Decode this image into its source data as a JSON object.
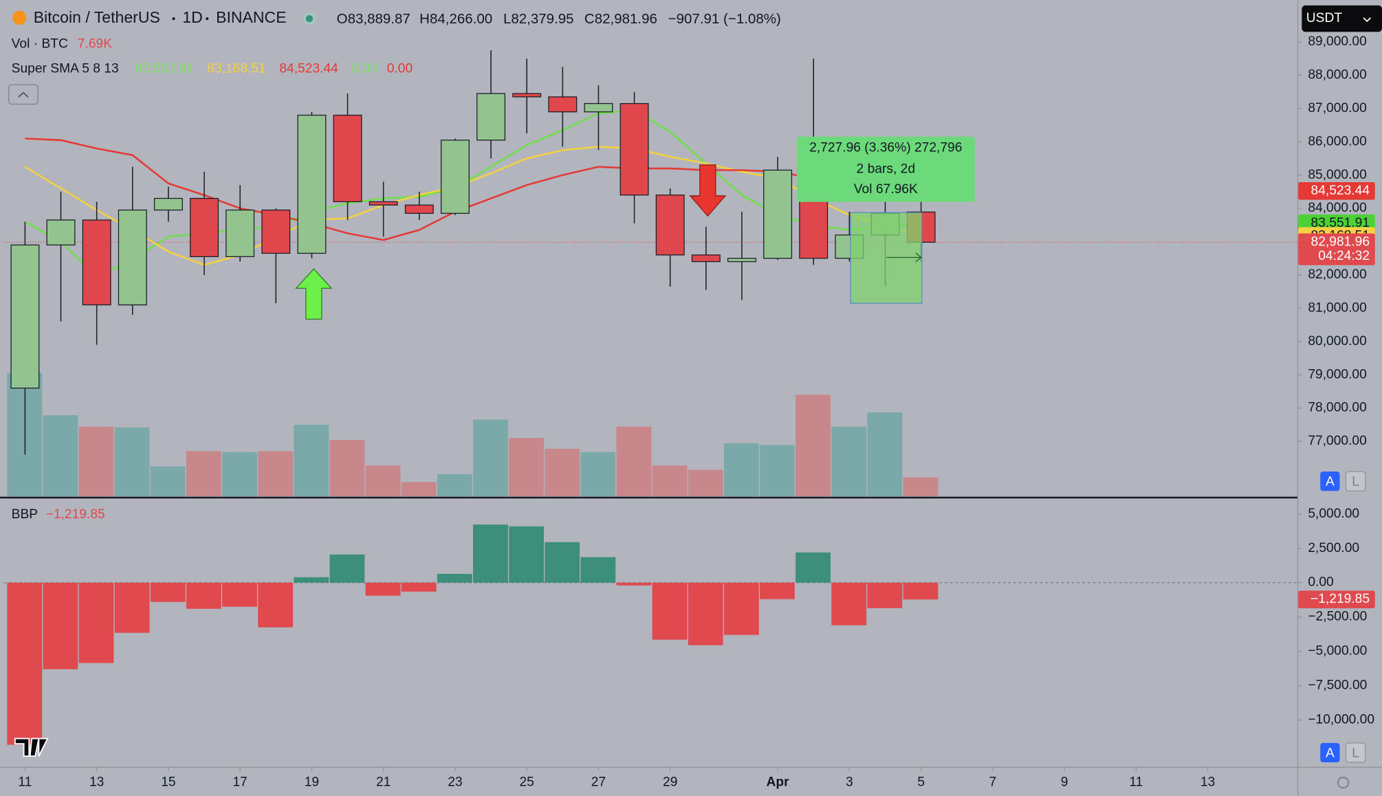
{
  "header": {
    "symbol": "Bitcoin / TetherUS",
    "interval": "1D",
    "exchange": "BINANCE",
    "ohlc": [
      "O83,889.87",
      "H84,266.00",
      "L82,379.95",
      "C82,981.96",
      "−907.91 (−1.08%)"
    ],
    "currency": "USDT"
  },
  "controls": {
    "auto": "A",
    "log": "L"
  },
  "measure": {
    "lines": [
      "2,727.96 (3.36%) 272,796",
      "2 bars, 2d",
      "Vol 67.96K"
    ]
  },
  "chart_data": [
    {
      "type": "candlestick",
      "xlim": [
        -0.6,
        35.5
      ],
      "xticks": [
        {
          "value": 0,
          "label": "11"
        },
        {
          "value": 2,
          "label": "13"
        },
        {
          "value": 4,
          "label": "15"
        },
        {
          "value": 6,
          "label": "17"
        },
        {
          "value": 8,
          "label": "19"
        },
        {
          "value": 10,
          "label": "21"
        },
        {
          "value": 12,
          "label": "23"
        },
        {
          "value": 14,
          "label": "25"
        },
        {
          "value": 16,
          "label": "27"
        },
        {
          "value": 18,
          "label": "29"
        },
        {
          "value": 21,
          "label": "Apr"
        },
        {
          "value": 23,
          "label": "3"
        },
        {
          "value": 25,
          "label": "5"
        },
        {
          "value": 27,
          "label": "7"
        },
        {
          "value": 29,
          "label": "9"
        },
        {
          "value": 31,
          "label": "11"
        },
        {
          "value": 33,
          "label": "13"
        }
      ],
      "ylim": [
        75350,
        90150
      ],
      "yticks": [
        {
          "value": 89000,
          "label": "89,000.00"
        },
        {
          "value": 88000,
          "label": "88,000.00"
        },
        {
          "value": 87000,
          "label": "87,000.00"
        },
        {
          "value": 86000,
          "label": "86,000.00"
        },
        {
          "value": 85000,
          "label": "85,000.00"
        },
        {
          "value": 84000,
          "label": "84,000.00"
        },
        {
          "value": 83000,
          "label": "83,000.00"
        },
        {
          "value": 82000,
          "label": "82,000.00"
        },
        {
          "value": 81000,
          "label": "81,000.00"
        },
        {
          "value": 80000,
          "label": "80,000.00"
        },
        {
          "value": 79000,
          "label": "79,000.00"
        },
        {
          "value": 78000,
          "label": "78,000.00"
        },
        {
          "value": 77000,
          "label": "77,000.00"
        }
      ],
      "open": [
        78600,
        82900,
        83650,
        81100,
        83950,
        84300,
        82550,
        83950,
        82650,
        86800,
        84200,
        84100,
        83850,
        86050,
        87450,
        87350,
        86900,
        87150,
        84400,
        82600,
        82400,
        82500,
        85150,
        82500,
        83200,
        83889.87
      ],
      "high": [
        83600,
        84500,
        84200,
        85250,
        84650,
        85100,
        84700,
        84000,
        86900,
        87450,
        84800,
        84500,
        86100,
        88750,
        88500,
        88250,
        87700,
        87500,
        84600,
        83450,
        83900,
        85550,
        88500,
        83900,
        84600,
        84266
      ],
      "low": [
        76600,
        80600,
        79900,
        80800,
        83600,
        82000,
        82400,
        81150,
        82500,
        83650,
        83150,
        83650,
        83800,
        85500,
        86250,
        85850,
        85750,
        83550,
        81650,
        81550,
        81250,
        82450,
        82300,
        82400,
        81650,
        82379.95
      ],
      "close": [
        82900,
        83650,
        81100,
        83950,
        84300,
        82550,
        83950,
        82650,
        86800,
        84200,
        84100,
        83850,
        86050,
        87450,
        87350,
        86900,
        87150,
        84400,
        82600,
        82400,
        82500,
        85150,
        82500,
        83200,
        83850,
        82981.96
      ],
      "up_color": "#93c48f",
      "down_color": "#e0474c",
      "volume": {
        "name": "Vol · BTC",
        "value_label": "7.69K",
        "values": [
          50.4,
          33.1,
          28.4,
          28.1,
          12.2,
          18.4,
          18.0,
          18.4,
          29.2,
          23.0,
          12.6,
          5.8,
          9.0,
          31.3,
          23.8,
          19.4,
          18.0,
          28.4,
          12.6,
          10.8,
          21.6,
          20.9,
          41.4,
          28.4,
          34.2,
          7.69
        ],
        "up_color": "#7ba8a9",
        "down_color": "#c8878a"
      },
      "indicator": {
        "name": "Super SMA 5 8 13",
        "series": [
          {
            "color": "#6fe04a",
            "legend_color": "#7ddf64",
            "last_label": "83,551.91",
            "values": [
              83600,
              83000,
              81950,
              82450,
              83150,
              83250,
              83350,
              83450,
              83900,
              84150,
              84300,
              84350,
              84600,
              85250,
              85900,
              86350,
              86850,
              86950,
              86300,
              85350,
              84400,
              83800,
              83500,
              83350,
              83450,
              83551.91
            ]
          },
          {
            "color": "#f5d142",
            "legend_color": "#f5d142",
            "last_label": "83,168.51",
            "values": [
              85250,
              84600,
              83950,
              83350,
              82700,
              82300,
              82600,
              83150,
              83650,
              83700,
              84100,
              84400,
              84650,
              85050,
              85500,
              85750,
              85850,
              85800,
              85550,
              85350,
              85100,
              84900,
              84300,
              83800,
              83500,
              83168.51
            ]
          },
          {
            "color": "#e53935",
            "legend_color": "#e53935",
            "last_label": "84,523.44",
            "values": [
              86100,
              86050,
              85800,
              85600,
              84750,
              84400,
              84000,
              83800,
              83550,
              83250,
              83050,
              83350,
              83900,
              84300,
              84700,
              85000,
              85250,
              85200,
              85200,
              85150,
              85150,
              85100,
              84900,
              84750,
              84650,
              84523.44
            ]
          }
        ],
        "extra_labels": [
          {
            "text": "0.00",
            "color": "#7ddf64"
          },
          {
            "text": "0.00",
            "color": "#e53935"
          }
        ]
      },
      "price_badges": [
        {
          "value": 84523.44,
          "label": "84,523.44",
          "color": "#e53935",
          "text_color": "#ffffff"
        },
        {
          "value": 83551.91,
          "label": "83,551.91",
          "color": "#4cd137",
          "text_color": "#131722"
        },
        {
          "value": 83168.51,
          "label": "83,168.51",
          "color": "#f7d046",
          "text_color": "#131722"
        }
      ],
      "last_price": {
        "value": 82981.96,
        "label": "82,981.96",
        "countdown": "04:24:32",
        "color": "#e04a4e"
      }
    },
    {
      "type": "bar",
      "title": "BBP",
      "value_label": "−1,219.85",
      "xlim": [
        -0.6,
        35.5
      ],
      "ylim": [
        -13400,
        6100
      ],
      "yticks": [
        {
          "value": 5000,
          "label": "5,000.00"
        },
        {
          "value": 2500,
          "label": "2,500.00"
        },
        {
          "value": 0,
          "label": "0.00"
        },
        {
          "value": -2500,
          "label": "−2,500.00"
        },
        {
          "value": -5000,
          "label": "−5,000.00"
        },
        {
          "value": -7500,
          "label": "−7,500.00"
        },
        {
          "value": -10000,
          "label": "−10,000.00"
        }
      ],
      "values": [
        -11800,
        -6300,
        -5850,
        -3650,
        -1400,
        -1900,
        -1750,
        -3250,
        400,
        2050,
        -950,
        -650,
        640,
        4230,
        4100,
        2950,
        1860,
        -200,
        -4150,
        -4550,
        -3800,
        -1200,
        2200,
        -3100,
        -1850,
        -1219.85
      ],
      "pos_color": "#3d8f7c",
      "neg_color": "#e04a4e",
      "badge": {
        "value": -1219.85,
        "label": "−1,219.85",
        "color": "#e04a4e"
      }
    }
  ]
}
